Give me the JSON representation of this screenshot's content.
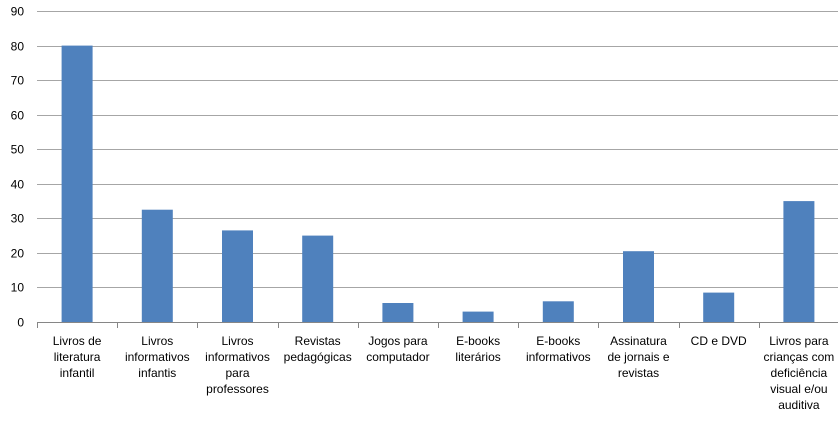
{
  "chart_data": {
    "type": "bar",
    "title": "",
    "xlabel": "",
    "ylabel": "",
    "ylim": [
      0,
      90
    ],
    "yticks": [
      0,
      10,
      20,
      30,
      40,
      50,
      60,
      70,
      80,
      90
    ],
    "grid": true,
    "legend": "none",
    "categories": [
      "Livros de literatura infantil",
      "Livros informativos infantis",
      "Livros informativos para professores",
      "Revistas pedagógicas",
      "Jogos para computador",
      "E-books literários",
      "E-books informativos",
      "Assinatura de jornais e revistas",
      "CD e DVD",
      "Livros para crianças com deficiência visual e/ou auditiva"
    ],
    "category_lines": [
      [
        "Livros de",
        "literatura",
        "infantil"
      ],
      [
        "Livros",
        "informativos",
        "infantis"
      ],
      [
        "Livros",
        "informativos",
        "para",
        "professores"
      ],
      [
        "Revistas",
        "pedagógicas"
      ],
      [
        "Jogos para",
        "computador"
      ],
      [
        "E-books",
        "literários"
      ],
      [
        "E-books",
        "informativos"
      ],
      [
        "Assinatura",
        "de jornais e",
        "revistas"
      ],
      [
        "CD e DVD"
      ],
      [
        "Livros para",
        "crianças com",
        "deficiência",
        "visual e/ou",
        "auditiva"
      ]
    ],
    "values": [
      80,
      32.5,
      26.5,
      25,
      5.5,
      3,
      6,
      20.5,
      8.5,
      35
    ],
    "colors": {
      "bar": "#4F81BD",
      "grid": "#A6A6A6",
      "axis": "#868686",
      "text": "#000000"
    }
  }
}
